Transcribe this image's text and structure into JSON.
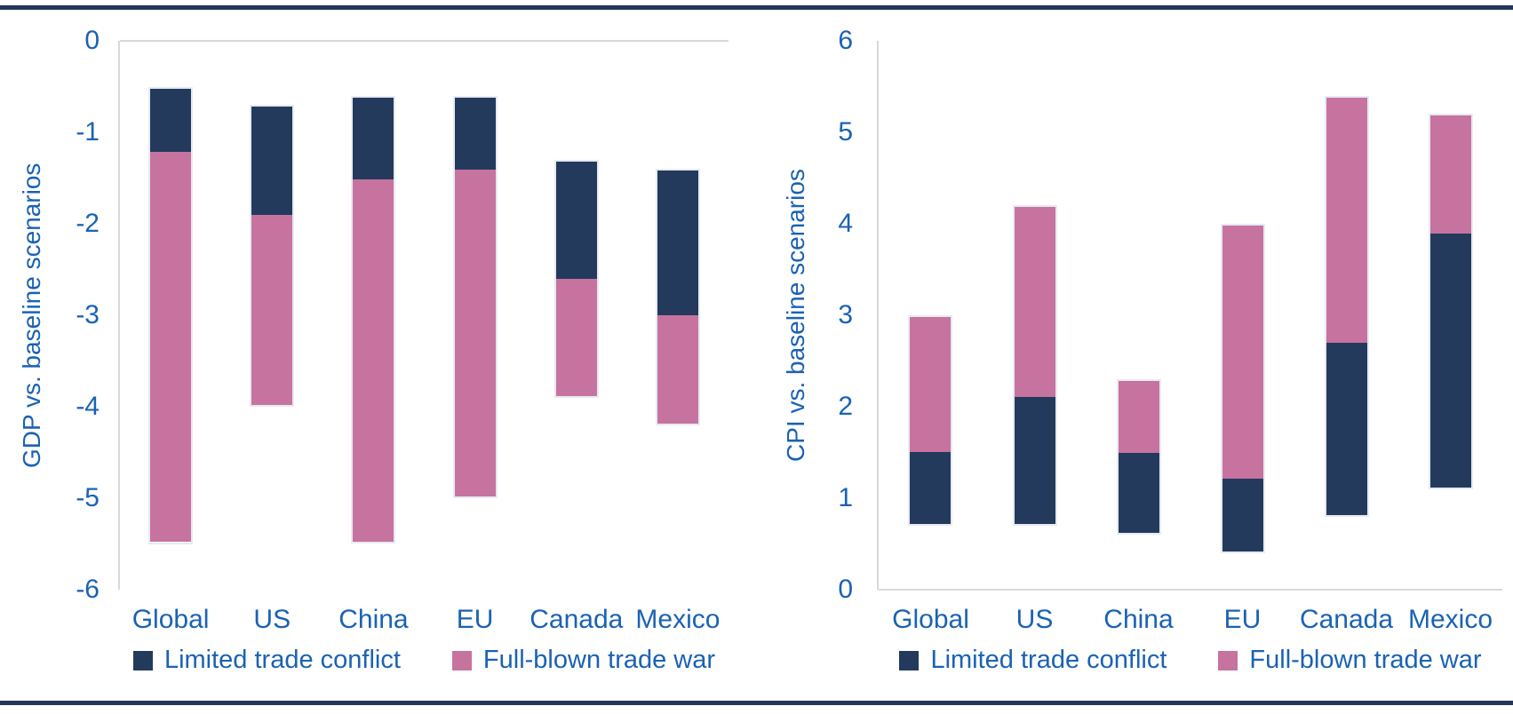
{
  "colors": {
    "navy": "#233A5C",
    "pink": "#C673A0",
    "text_blue": "#1A62B4",
    "rule": "#26365B",
    "axis_line": "#D9D9D9",
    "bar_outline": "#E7EAF2"
  },
  "legend": {
    "items": [
      {
        "label": "Limited trade conflict",
        "color": "#233A5C"
      },
      {
        "label": "Full-blown trade war",
        "color": "#C673A0"
      }
    ],
    "position": "bottom"
  },
  "chart_data": [
    {
      "type": "bar",
      "subtype": "floating-stacked-range-columns",
      "ylabel": "GDP vs. baseline scenarios",
      "xlabel": "",
      "title": "",
      "categories": [
        "Global",
        "US",
        "China",
        "EU",
        "Canada",
        "Mexico"
      ],
      "ylim": [
        -6,
        0
      ],
      "yticks": [
        0,
        -1,
        -2,
        -3,
        -4,
        -5,
        -6
      ],
      "grid": false,
      "legend_position": "bottom",
      "series": [
        {
          "name": "Limited trade conflict",
          "color": "#233A5C",
          "ranges": [
            [
              -0.5,
              -1.2
            ],
            [
              -0.7,
              -1.9
            ],
            [
              -0.6,
              -1.5
            ],
            [
              -0.6,
              -1.4
            ],
            [
              -1.3,
              -2.6
            ],
            [
              -1.4,
              -3.0
            ]
          ]
        },
        {
          "name": "Full-blown trade war",
          "color": "#C673A0",
          "ranges": [
            [
              -1.2,
              -5.5
            ],
            [
              -1.9,
              -4.0
            ],
            [
              -1.5,
              -5.5
            ],
            [
              -1.4,
              -5.0
            ],
            [
              -2.6,
              -3.9
            ],
            [
              -3.0,
              -4.2
            ]
          ]
        }
      ]
    },
    {
      "type": "bar",
      "subtype": "floating-stacked-range-columns",
      "ylabel": "CPI vs. baseline scenarios",
      "xlabel": "",
      "title": "",
      "categories": [
        "Global",
        "US",
        "China",
        "EU",
        "Canada",
        "Mexico"
      ],
      "ylim": [
        0,
        6
      ],
      "yticks": [
        6,
        5,
        4,
        3,
        2,
        1,
        0
      ],
      "grid": false,
      "legend_position": "bottom",
      "series": [
        {
          "name": "Limited trade conflict",
          "color": "#233A5C",
          "ranges": [
            [
              0.7,
              1.5
            ],
            [
              0.7,
              2.1
            ],
            [
              0.6,
              1.5
            ],
            [
              0.4,
              1.2
            ],
            [
              0.8,
              2.7
            ],
            [
              1.1,
              3.9
            ]
          ]
        },
        {
          "name": "Full-blown trade war",
          "color": "#C673A0",
          "ranges": [
            [
              1.5,
              3.0
            ],
            [
              2.1,
              4.2
            ],
            [
              1.5,
              2.3
            ],
            [
              1.2,
              4.0
            ],
            [
              2.7,
              5.4
            ],
            [
              3.9,
              5.2
            ]
          ]
        }
      ]
    }
  ]
}
